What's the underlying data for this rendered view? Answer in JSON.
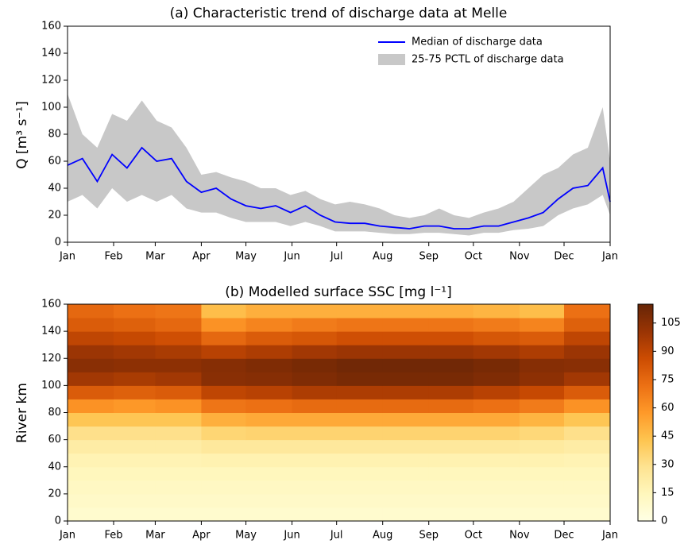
{
  "chart_data": [
    {
      "type": "line",
      "title": "(a) Characteristic trend of discharge data at Melle",
      "ylabel": "Q [m³ s⁻¹]",
      "x": [
        0,
        10,
        20,
        30,
        40,
        50,
        60,
        70,
        80,
        90,
        100,
        110,
        120,
        130,
        140,
        150,
        160,
        170,
        180,
        190,
        200,
        210,
        220,
        230,
        240,
        250,
        260,
        270,
        280,
        290,
        300,
        310,
        320,
        330,
        340,
        350,
        360,
        365
      ],
      "xlim": [
        0,
        365
      ],
      "xticks": [
        {
          "value": 0,
          "label": "Jan"
        },
        {
          "value": 31,
          "label": "Feb"
        },
        {
          "value": 59,
          "label": "Mar"
        },
        {
          "value": 90,
          "label": "Apr"
        },
        {
          "value": 120,
          "label": "May"
        },
        {
          "value": 151,
          "label": "Jun"
        },
        {
          "value": 181,
          "label": "Jul"
        },
        {
          "value": 212,
          "label": "Aug"
        },
        {
          "value": 243,
          "label": "Sep"
        },
        {
          "value": 273,
          "label": "Oct"
        },
        {
          "value": 304,
          "label": "Nov"
        },
        {
          "value": 334,
          "label": "Dec"
        },
        {
          "value": 365,
          "label": "Jan"
        }
      ],
      "ylim": [
        0,
        160
      ],
      "yticks": [
        0,
        20,
        40,
        60,
        80,
        100,
        120,
        140,
        160
      ],
      "legend": "upper right",
      "series": [
        {
          "name": "Median of discharge data",
          "color": "#0000ff",
          "values": [
            57,
            62,
            45,
            65,
            55,
            70,
            60,
            62,
            45,
            37,
            40,
            32,
            27,
            25,
            27,
            22,
            27,
            20,
            15,
            14,
            14,
            12,
            11,
            10,
            12,
            12,
            10,
            10,
            12,
            12,
            15,
            18,
            22,
            32,
            40,
            42,
            55,
            30
          ]
        },
        {
          "name": "25-75 PCTL of discharge data",
          "color": "#c8c8c8",
          "low": [
            30,
            35,
            25,
            40,
            30,
            35,
            30,
            35,
            25,
            22,
            22,
            18,
            15,
            15,
            15,
            12,
            15,
            12,
            8,
            8,
            8,
            7,
            6,
            6,
            7,
            7,
            6,
            5,
            7,
            7,
            9,
            10,
            12,
            20,
            25,
            28,
            35,
            20
          ],
          "high": [
            110,
            80,
            70,
            95,
            90,
            105,
            90,
            85,
            70,
            50,
            52,
            48,
            45,
            40,
            40,
            35,
            38,
            32,
            28,
            30,
            28,
            25,
            20,
            18,
            20,
            25,
            20,
            18,
            22,
            25,
            30,
            40,
            50,
            55,
            65,
            70,
            100,
            60
          ]
        }
      ]
    },
    {
      "type": "heatmap",
      "title": "(b) Modelled surface SSC [mg l⁻¹]",
      "ylabel": "River km",
      "xlim": [
        0,
        365
      ],
      "xticks": [
        {
          "value": 0,
          "label": "Jan"
        },
        {
          "value": 31,
          "label": "Feb"
        },
        {
          "value": 59,
          "label": "Mar"
        },
        {
          "value": 90,
          "label": "Apr"
        },
        {
          "value": 120,
          "label": "May"
        },
        {
          "value": 151,
          "label": "Jun"
        },
        {
          "value": 181,
          "label": "Jul"
        },
        {
          "value": 212,
          "label": "Aug"
        },
        {
          "value": 243,
          "label": "Sep"
        },
        {
          "value": 273,
          "label": "Oct"
        },
        {
          "value": 304,
          "label": "Nov"
        },
        {
          "value": 334,
          "label": "Dec"
        },
        {
          "value": 365,
          "label": "Jan"
        }
      ],
      "ylim": [
        0,
        160
      ],
      "yticks": [
        0,
        20,
        40,
        60,
        80,
        100,
        120,
        140,
        160
      ],
      "xbins": [
        0,
        31,
        59,
        90,
        120,
        151,
        181,
        212,
        243,
        273,
        304,
        334,
        365
      ],
      "ybins": [
        0,
        10,
        20,
        30,
        40,
        50,
        60,
        70,
        80,
        90,
        100,
        110,
        120,
        130,
        140,
        150,
        160
      ],
      "z": [
        [
          8,
          8,
          8,
          8,
          8,
          8,
          8,
          8,
          8,
          8,
          8,
          8
        ],
        [
          10,
          10,
          10,
          10,
          10,
          10,
          10,
          10,
          10,
          10,
          10,
          10
        ],
        [
          12,
          12,
          12,
          12,
          12,
          12,
          12,
          12,
          12,
          12,
          12,
          12
        ],
        [
          14,
          14,
          14,
          14,
          14,
          14,
          14,
          14,
          14,
          14,
          14,
          14
        ],
        [
          17,
          17,
          17,
          18,
          18,
          18,
          18,
          18,
          18,
          18,
          18,
          17
        ],
        [
          22,
          22,
          22,
          25,
          25,
          25,
          25,
          25,
          25,
          25,
          24,
          22
        ],
        [
          30,
          30,
          30,
          35,
          36,
          36,
          36,
          36,
          36,
          36,
          34,
          30
        ],
        [
          42,
          42,
          42,
          50,
          52,
          52,
          52,
          52,
          52,
          52,
          48,
          42
        ],
        [
          60,
          58,
          60,
          70,
          72,
          74,
          74,
          74,
          74,
          72,
          68,
          60
        ],
        [
          80,
          78,
          80,
          90,
          92,
          95,
          95,
          95,
          95,
          92,
          88,
          80
        ],
        [
          98,
          96,
          98,
          105,
          106,
          108,
          110,
          110,
          110,
          108,
          104,
          98
        ],
        [
          105,
          104,
          104,
          106,
          108,
          110,
          112,
          112,
          112,
          110,
          106,
          105
        ],
        [
          100,
          98,
          96,
          92,
          95,
          98,
          100,
          100,
          100,
          98,
          95,
          100
        ],
        [
          90,
          88,
          85,
          75,
          80,
          82,
          85,
          85,
          85,
          82,
          80,
          90
        ],
        [
          80,
          78,
          75,
          60,
          65,
          68,
          70,
          70,
          70,
          68,
          65,
          78
        ],
        [
          75,
          72,
          70,
          45,
          50,
          50,
          50,
          50,
          50,
          48,
          45,
          72
        ]
      ],
      "clim": [
        0,
        115
      ],
      "cticks": [
        0,
        15,
        30,
        45,
        60,
        75,
        90,
        105
      ]
    }
  ]
}
